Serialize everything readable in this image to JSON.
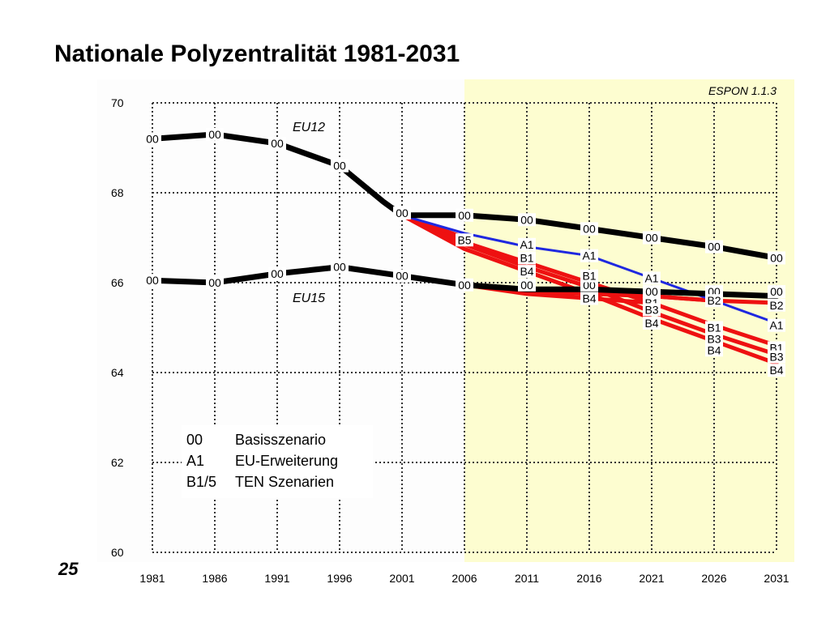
{
  "title": "Nationale Polyzentralität 1981-2031",
  "page_number": "25",
  "source": "ESPON 1.1.3",
  "legend": [
    {
      "code": "00",
      "text": "Basisszenario"
    },
    {
      "code": "A1",
      "text": "EU-Erweiterung"
    },
    {
      "code": "B1/5",
      "text": "TEN Szenarien"
    }
  ],
  "colors": {
    "baseline": "#000000",
    "enlargement": "#1f28e0",
    "ten": "#ee1111",
    "forecast_bg": "#fdfdd0",
    "plot_bg": "#fdfdfd"
  },
  "chart_data": {
    "type": "line",
    "x": [
      1981,
      1986,
      1991,
      1996,
      2001,
      2006,
      2011,
      2016,
      2021,
      2026,
      2031
    ],
    "x_tick_labels": [
      "1981",
      "1986",
      "1991",
      "1996",
      "2001",
      "2006",
      "2011",
      "2016",
      "2021",
      "2026",
      "2031"
    ],
    "y_tick_labels": [
      "60",
      "62",
      "64",
      "66",
      "68",
      "70"
    ],
    "ylim": [
      60,
      70
    ],
    "grid": true,
    "shaded_x_range": [
      2006,
      2031
    ],
    "regions": [
      "EU12",
      "EU15"
    ],
    "series": [
      {
        "name": "00",
        "region": "EU12",
        "scenario": "00",
        "x": [
          1981,
          1986,
          1991,
          1996,
          1999.5,
          2001,
          2006,
          2011,
          2016,
          2021,
          2026,
          2031
        ],
        "values": [
          69.2,
          69.3,
          69.1,
          68.6,
          67.8,
          67.5,
          67.5,
          67.4,
          67.2,
          67.0,
          66.8,
          66.55
        ]
      },
      {
        "name": "00",
        "region": "EU15",
        "scenario": "00",
        "x": [
          1981,
          1986,
          1991,
          1996,
          2001,
          2006,
          2011,
          2016,
          2021,
          2026,
          2031
        ],
        "values": [
          66.05,
          66.0,
          66.2,
          66.35,
          66.15,
          65.95,
          65.85,
          65.85,
          65.8,
          65.75,
          65.7
        ]
      },
      {
        "name": "A1",
        "region": "EU12",
        "scenario": "A1",
        "x": [
          2001,
          2006,
          2011,
          2016,
          2021,
          2026,
          2031
        ],
        "values": [
          67.5,
          67.1,
          66.8,
          66.6,
          66.1,
          65.6,
          65.1
        ]
      },
      {
        "name": "B1",
        "region": "EU12",
        "scenario": "B1",
        "x": [
          2001,
          2006,
          2011,
          2016,
          2021,
          2026,
          2031
        ],
        "values": [
          67.5,
          66.9,
          66.45,
          66.0,
          65.55,
          65.05,
          64.6
        ]
      },
      {
        "name": "B3",
        "region": "EU12",
        "scenario": "B3",
        "x": [
          2001,
          2006,
          2011,
          2016,
          2021,
          2026,
          2031
        ],
        "values": [
          67.5,
          66.85,
          66.35,
          65.9,
          65.35,
          64.85,
          64.4
        ]
      },
      {
        "name": "B4",
        "region": "EU12",
        "scenario": "B4",
        "x": [
          2001,
          2006,
          2011,
          2016,
          2021,
          2026,
          2031
        ],
        "values": [
          67.5,
          66.75,
          66.25,
          65.75,
          65.2,
          64.7,
          64.2
        ]
      },
      {
        "name": "B5",
        "region": "EU12",
        "scenario": "B5",
        "x": [
          2001,
          2006
        ],
        "values": [
          67.5,
          67.0
        ]
      },
      {
        "name": "B1",
        "region": "EU15",
        "scenario": "B1",
        "x": [
          2006,
          2011,
          2016,
          2021,
          2026
        ],
        "values": [
          65.95,
          65.8,
          65.75,
          65.7,
          65.6
        ]
      },
      {
        "name": "B2",
        "region": "EU15",
        "scenario": "B2",
        "x": [
          2006,
          2011,
          2016,
          2021,
          2026,
          2031
        ],
        "values": [
          65.95,
          65.85,
          65.8,
          65.7,
          65.6,
          65.55
        ]
      },
      {
        "name": "B4",
        "region": "EU15",
        "scenario": "B4",
        "x": [
          2006,
          2011,
          2016,
          2021
        ],
        "values": [
          65.95,
          65.75,
          65.65,
          65.55
        ]
      }
    ],
    "point_labels": [
      {
        "text": "00",
        "x": 1981,
        "y": 69.2,
        "color": "#000000"
      },
      {
        "text": "00",
        "x": 1986,
        "y": 69.3,
        "color": "#000000"
      },
      {
        "text": "00",
        "x": 1991,
        "y": 69.1,
        "color": "#000000"
      },
      {
        "text": "00",
        "x": 1996,
        "y": 68.6,
        "color": "#000000"
      },
      {
        "text": "00",
        "x": 2001,
        "y": 67.55,
        "color": "#000000"
      },
      {
        "text": "00",
        "x": 2006,
        "y": 67.5,
        "color": "#000000"
      },
      {
        "text": "00",
        "x": 2011,
        "y": 67.4,
        "color": "#000000"
      },
      {
        "text": "00",
        "x": 2016,
        "y": 67.2,
        "color": "#000000"
      },
      {
        "text": "00",
        "x": 2021,
        "y": 67.0,
        "color": "#000000"
      },
      {
        "text": "00",
        "x": 2026,
        "y": 66.8,
        "color": "#000000"
      },
      {
        "text": "00",
        "x": 2031,
        "y": 66.55,
        "color": "#000000"
      },
      {
        "text": "00",
        "x": 1981,
        "y": 66.05,
        "color": "#000000"
      },
      {
        "text": "00",
        "x": 1986,
        "y": 66.0,
        "color": "#000000"
      },
      {
        "text": "00",
        "x": 1991,
        "y": 66.2,
        "color": "#000000"
      },
      {
        "text": "00",
        "x": 1996,
        "y": 66.35,
        "color": "#000000"
      },
      {
        "text": "00",
        "x": 2001,
        "y": 66.15,
        "color": "#000000"
      },
      {
        "text": "00",
        "x": 2006,
        "y": 65.95,
        "color": "#000000"
      },
      {
        "text": "00",
        "x": 2011,
        "y": 65.95,
        "color": "#000000"
      },
      {
        "text": "00",
        "x": 2016,
        "y": 65.95,
        "color": "#000000"
      },
      {
        "text": "00",
        "x": 2021,
        "y": 65.8,
        "color": "#000000"
      },
      {
        "text": "00",
        "x": 2026,
        "y": 65.8,
        "color": "#000000"
      },
      {
        "text": "00",
        "x": 2031,
        "y": 65.8,
        "color": "#000000"
      },
      {
        "text": "B5",
        "x": 2006,
        "y": 66.95,
        "color": "#ee1111"
      },
      {
        "text": "A1",
        "x": 2011,
        "y": 66.85,
        "color": "#1f28e0"
      },
      {
        "text": "B1",
        "x": 2011,
        "y": 66.55,
        "color": "#ee1111"
      },
      {
        "text": "B4",
        "x": 2011,
        "y": 66.25,
        "color": "#ee1111"
      },
      {
        "text": "A1",
        "x": 2016,
        "y": 66.6,
        "color": "#1f28e0"
      },
      {
        "text": "B1",
        "x": 2016,
        "y": 66.15,
        "color": "#ee1111"
      },
      {
        "text": "B4",
        "x": 2016,
        "y": 65.65,
        "color": "#ee1111"
      },
      {
        "text": "A1",
        "x": 2021,
        "y": 66.1,
        "color": "#1f28e0"
      },
      {
        "text": "B1",
        "x": 2021,
        "y": 65.55,
        "color": "#ee1111"
      },
      {
        "text": "B3",
        "x": 2021,
        "y": 65.4,
        "color": "#ee1111"
      },
      {
        "text": "B4",
        "x": 2021,
        "y": 65.1,
        "color": "#ee1111"
      },
      {
        "text": "B2",
        "x": 2026,
        "y": 65.6,
        "color": "#ee1111"
      },
      {
        "text": "B1",
        "x": 2026,
        "y": 65.0,
        "color": "#ee1111"
      },
      {
        "text": "B3",
        "x": 2026,
        "y": 64.75,
        "color": "#ee1111"
      },
      {
        "text": "B4",
        "x": 2026,
        "y": 64.5,
        "color": "#ee1111"
      },
      {
        "text": "B2",
        "x": 2031,
        "y": 65.5,
        "color": "#ee1111"
      },
      {
        "text": "A1",
        "x": 2031,
        "y": 65.05,
        "color": "#1f28e0"
      },
      {
        "text": "B1",
        "x": 2031,
        "y": 64.55,
        "color": "#ee1111"
      },
      {
        "text": "B3",
        "x": 2031,
        "y": 64.35,
        "color": "#ee1111"
      },
      {
        "text": "B4",
        "x": 2031,
        "y": 64.05,
        "color": "#ee1111"
      }
    ]
  }
}
